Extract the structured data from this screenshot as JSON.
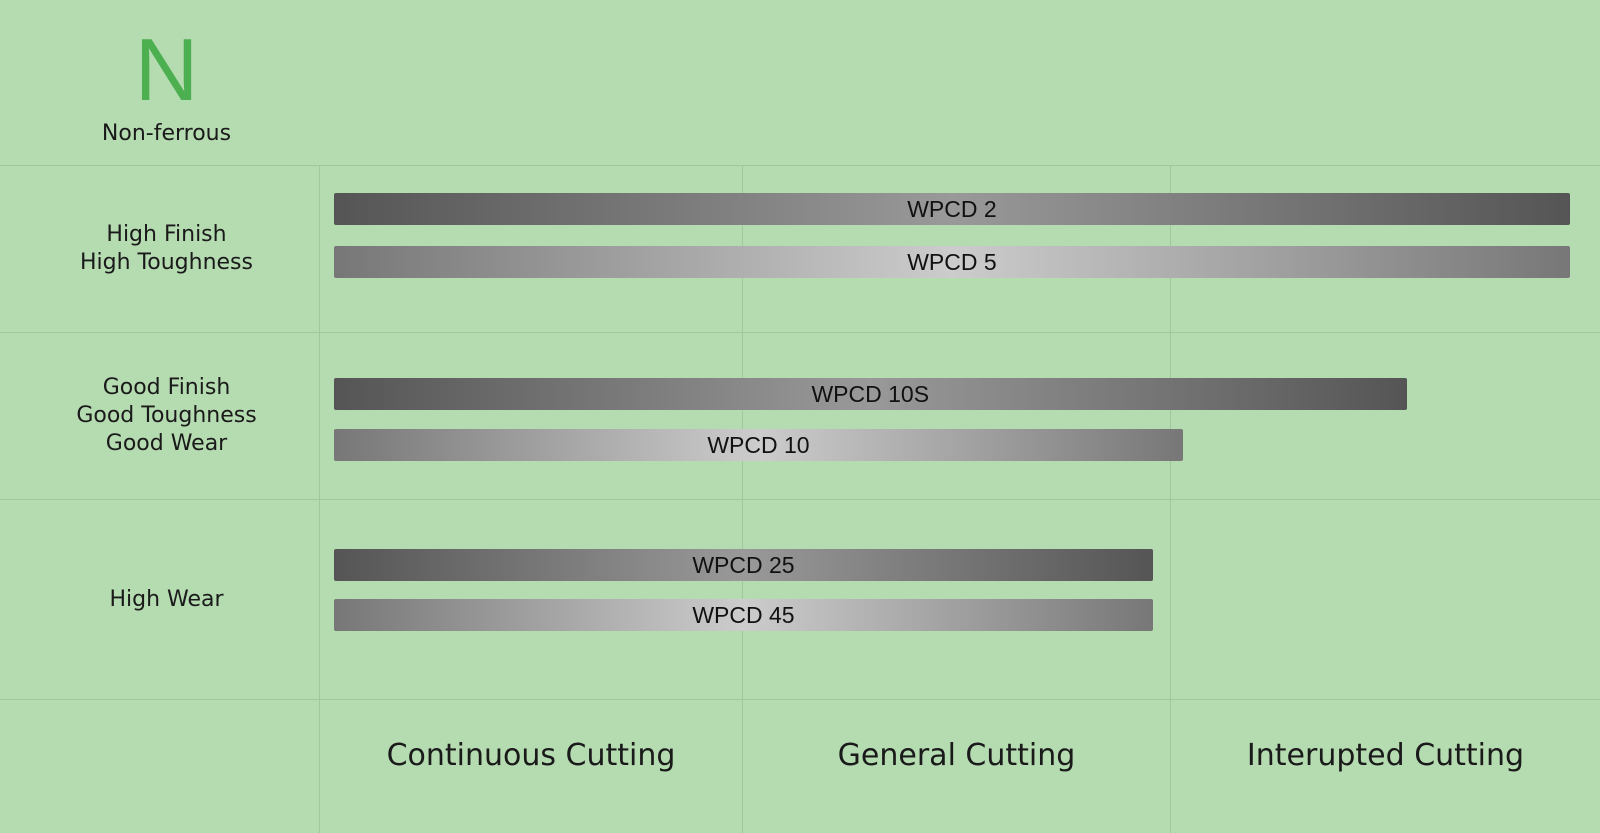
{
  "header": {
    "logo_letter": "N",
    "logo_caption": "Non-ferrous",
    "accent_color": "#4caf50",
    "background_color": "#b5dbb0"
  },
  "chart_data": {
    "type": "bar",
    "orientation": "horizontal-range",
    "x_categories": [
      "Continuous Cutting",
      "General Cutting",
      "Interupted Cutting"
    ],
    "xlim": [
      0,
      3
    ],
    "groups": [
      {
        "label_lines": [
          "High Finish",
          "High Toughness"
        ],
        "bars": [
          {
            "name": "WPCD 2",
            "start": 0,
            "end": 2.93,
            "style": "dark"
          },
          {
            "name": "WPCD 5",
            "start": 0,
            "end": 2.93,
            "style": "light"
          }
        ]
      },
      {
        "label_lines": [
          "Good Finish",
          "Good Toughness",
          "Good Wear"
        ],
        "bars": [
          {
            "name": "WPCD 10S",
            "start": 0,
            "end": 2.55,
            "style": "dark"
          },
          {
            "name": "WPCD 10",
            "start": 0,
            "end": 2.03,
            "style": "light"
          }
        ]
      },
      {
        "label_lines": [
          "High Wear"
        ],
        "bars": [
          {
            "name": "WPCD 25",
            "start": 0,
            "end": 1.96,
            "style": "dark"
          },
          {
            "name": "WPCD 45",
            "start": 0,
            "end": 1.96,
            "style": "light"
          }
        ]
      }
    ]
  }
}
